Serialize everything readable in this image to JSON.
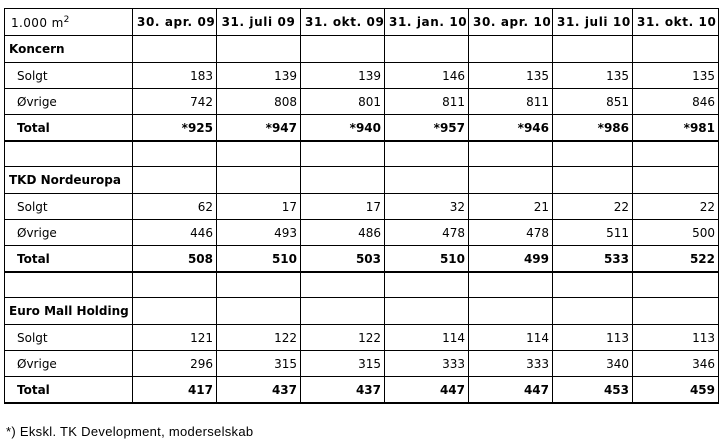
{
  "header": {
    "unit": "1.000 m",
    "unit_sup": "2",
    "columns": [
      "30. apr. 09",
      "31. juli 09",
      "31. okt. 09",
      "31. jan. 10",
      "30. apr. 10",
      "31. juli 10",
      "31. okt. 10"
    ]
  },
  "sections": [
    {
      "title": "Koncern",
      "rows": [
        {
          "label": "Solgt",
          "values": [
            "183",
            "139",
            "139",
            "146",
            "135",
            "135",
            "135"
          ]
        },
        {
          "label": "Øvrige",
          "values": [
            "742",
            "808",
            "801",
            "811",
            "811",
            "851",
            "846"
          ]
        },
        {
          "label": "Total",
          "values": [
            "*925",
            "*947",
            "*940",
            "*957",
            "*946",
            "*986",
            "*981"
          ]
        }
      ]
    },
    {
      "title": "TKD Nordeuropa",
      "rows": [
        {
          "label": "Solgt",
          "values": [
            "62",
            "17",
            "17",
            "32",
            "21",
            "22",
            "22"
          ]
        },
        {
          "label": "Øvrige",
          "values": [
            "446",
            "493",
            "486",
            "478",
            "478",
            "511",
            "500"
          ]
        },
        {
          "label": "Total",
          "values": [
            "508",
            "510",
            "503",
            "510",
            "499",
            "533",
            "522"
          ]
        }
      ]
    },
    {
      "title": "Euro Mall Holding",
      "rows": [
        {
          "label": "Solgt",
          "values": [
            "121",
            "122",
            "122",
            "114",
            "114",
            "113",
            "113"
          ]
        },
        {
          "label": "Øvrige",
          "values": [
            "296",
            "315",
            "315",
            "333",
            "333",
            "340",
            "346"
          ]
        },
        {
          "label": "Total",
          "values": [
            "417",
            "437",
            "437",
            "447",
            "447",
            "453",
            "459"
          ]
        }
      ]
    }
  ],
  "footnote": "*) Ekskl. TK Development, moderselskab"
}
